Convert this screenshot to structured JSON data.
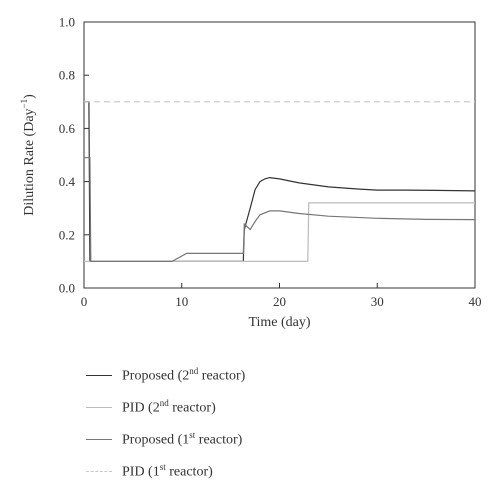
{
  "chart_data": {
    "type": "line",
    "title": "",
    "xlabel": "Time (day)",
    "ylabel": {
      "main": "Dilution Rate (Day",
      "sup": "−1",
      "close": ")"
    },
    "xlim": [
      0,
      40
    ],
    "ylim": [
      0.0,
      1.0
    ],
    "xticks": [
      "0",
      "10",
      "20",
      "30",
      "40"
    ],
    "yticks": [
      "0.0",
      "0.2",
      "0.4",
      "0.6",
      "0.8",
      "1.0"
    ],
    "grid": false,
    "legend_position": "below",
    "series": [
      {
        "name": {
          "pre": "Proposed (2",
          "sup": "nd",
          "post": " reactor)"
        },
        "color": "#333333",
        "dash": "solid",
        "x": [
          0,
          0.5,
          0.6,
          16.3,
          16.4,
          17.0,
          17.5,
          18.0,
          18.5,
          19.0,
          20.0,
          22.0,
          25.0,
          28.0,
          30.0,
          33.0,
          36.0,
          40.0
        ],
        "y": [
          0.7,
          0.7,
          0.1,
          0.1,
          0.22,
          0.3,
          0.37,
          0.4,
          0.41,
          0.415,
          0.41,
          0.395,
          0.38,
          0.372,
          0.368,
          0.368,
          0.367,
          0.365
        ]
      },
      {
        "name": {
          "pre": "PID (2",
          "sup": "nd",
          "post": " reactor)"
        },
        "color": "#bbbbbb",
        "dash": "solid",
        "x": [
          0,
          0.6,
          0.7,
          22.9,
          23.0,
          40.0
        ],
        "y": [
          0.1,
          0.1,
          0.1,
          0.1,
          0.32,
          0.32
        ]
      },
      {
        "name": {
          "pre": "Proposed (1",
          "sup": "st",
          "post": " reactor)"
        },
        "color": "#777777",
        "dash": "solid",
        "x": [
          0,
          0.6,
          0.7,
          9.0,
          10.5,
          16.3,
          16.4,
          17.0,
          17.5,
          18.0,
          19.0,
          20.0,
          22.0,
          25.0,
          30.0,
          35.0,
          40.0
        ],
        "y": [
          0.49,
          0.49,
          0.1,
          0.1,
          0.13,
          0.13,
          0.24,
          0.22,
          0.25,
          0.275,
          0.29,
          0.29,
          0.28,
          0.27,
          0.262,
          0.258,
          0.257
        ]
      },
      {
        "name": {
          "pre": "PID (1",
          "sup": "st",
          "post": " reactor)"
        },
        "color": "#c8c8c8",
        "dash": "dashed",
        "x": [
          0,
          40
        ],
        "y": [
          0.7,
          0.7
        ]
      }
    ]
  }
}
